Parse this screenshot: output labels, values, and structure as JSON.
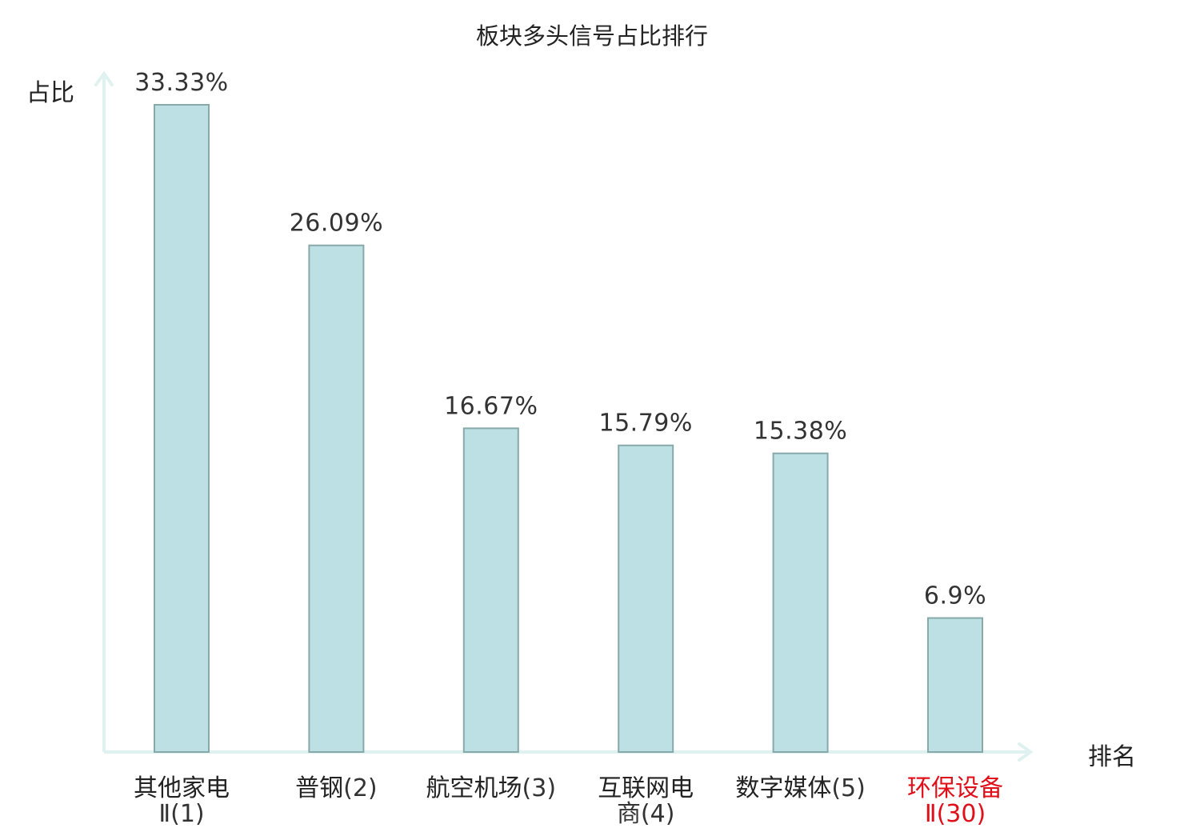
{
  "chart_data": {
    "type": "bar",
    "title": "板块多头信号占比排行",
    "xlabel": "排名",
    "ylabel": "占比",
    "categories": [
      {
        "name": "其他家电",
        "rank": "Ⅱ(1)"
      },
      {
        "name": "普钢",
        "rank": "(2)"
      },
      {
        "name": "航空机场",
        "rank": "(3)"
      },
      {
        "name": "互联网电",
        "rank": "商(4)"
      },
      {
        "name": "数字媒体",
        "rank": "(5)"
      },
      {
        "name": "环保设备",
        "rank": "Ⅱ(30)",
        "highlight": true
      }
    ],
    "values": [
      33.33,
      26.09,
      16.67,
      15.79,
      15.38,
      6.9
    ],
    "value_labels": [
      "33.33%",
      "26.09%",
      "16.67%",
      "15.79%",
      "15.38%",
      "6.9%"
    ],
    "ylim": [
      0,
      37
    ],
    "grid": false,
    "colors": {
      "bar_fill": "#bce0e3",
      "bar_stroke": "#88a9aa",
      "axis": "#e0f2ef",
      "label_text": "#222222",
      "value_text": "#333333",
      "name_text": "#222222",
      "rank_text": "#333333",
      "highlight_text": "#e0101a"
    }
  }
}
